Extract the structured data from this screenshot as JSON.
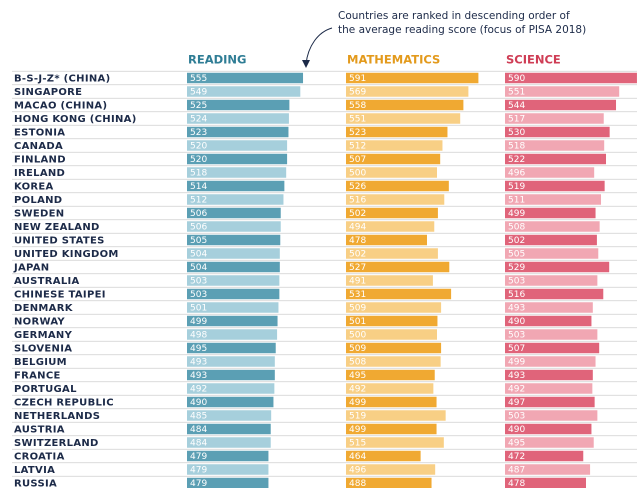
{
  "chart_data": {
    "type": "bar",
    "orientation": "horizontal",
    "annotation": [
      "Countries are ranked in descending order of",
      "the average reading score (focus of PISA 2018)"
    ],
    "categories": [
      "B-S-J-Z* (CHINA)",
      "SINGAPORE",
      "MACAO (CHINA)",
      "HONG KONG (CHINA)",
      "ESTONIA",
      "CANADA",
      "FINLAND",
      "IRELAND",
      "KOREA",
      "POLAND",
      "SWEDEN",
      "NEW ZEALAND",
      "UNITED STATES",
      "UNITED KINGDOM",
      "JAPAN",
      "AUSTRALIA",
      "CHINESE TAIPEI",
      "DENMARK",
      "NORWAY",
      "GERMANY",
      "SLOVENIA",
      "BELGIUM",
      "FRANCE",
      "PORTUGAL",
      "CZECH REPUBLIC",
      "NETHERLANDS",
      "AUSTRIA",
      "SWITZERLAND",
      "CROATIA",
      "LATVIA",
      "RUSSIA"
    ],
    "xlim": [
      300,
      600
    ],
    "series": [
      {
        "name": "READING",
        "color": "#2f7d95",
        "colors": [
          "#5b9fb4",
          "#a6cfdc"
        ],
        "values": [
          555,
          549,
          525,
          524,
          523,
          520,
          520,
          518,
          514,
          512,
          506,
          506,
          505,
          504,
          504,
          503,
          503,
          501,
          499,
          498,
          495,
          493,
          493,
          492,
          490,
          485,
          484,
          484,
          479,
          479,
          479
        ]
      },
      {
        "name": "MATHEMATICS",
        "color": "#e39a1c",
        "colors": [
          "#f0a932",
          "#f8cf85"
        ],
        "values": [
          591,
          569,
          558,
          551,
          523,
          512,
          507,
          500,
          526,
          516,
          502,
          494,
          478,
          502,
          527,
          491,
          531,
          509,
          501,
          500,
          509,
          508,
          495,
          492,
          499,
          519,
          499,
          515,
          464,
          496,
          488
        ]
      },
      {
        "name": "SCIENCE",
        "color": "#cf3d55",
        "colors": [
          "#e0647a",
          "#f1a7b3"
        ],
        "values": [
          590,
          551,
          544,
          517,
          530,
          518,
          522,
          496,
          519,
          511,
          499,
          508,
          502,
          505,
          529,
          503,
          516,
          493,
          490,
          503,
          507,
          499,
          493,
          492,
          497,
          503,
          490,
          495,
          472,
          487,
          478
        ]
      }
    ]
  }
}
